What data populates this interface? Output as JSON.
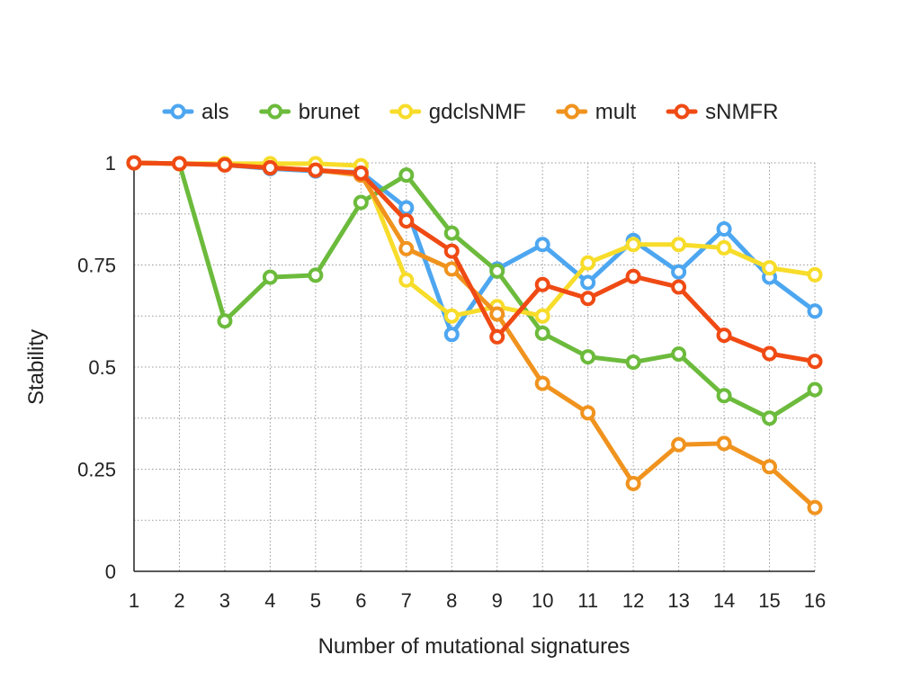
{
  "chart_data": {
    "type": "line",
    "title": "",
    "xlabel": "Number of mutational signatures",
    "ylabel": "Stability",
    "x": [
      1,
      2,
      3,
      4,
      5,
      6,
      7,
      8,
      9,
      10,
      11,
      12,
      13,
      14,
      15,
      16
    ],
    "xlim": [
      1,
      16
    ],
    "ylim": [
      0,
      1
    ],
    "yticks": [
      0,
      0.25,
      0.5,
      0.75,
      1
    ],
    "ytick_labels": [
      "0",
      "0.25",
      "0.5",
      "0.75",
      "1"
    ],
    "xtick_labels": [
      "1",
      "2",
      "3",
      "4",
      "5",
      "6",
      "7",
      "8",
      "9",
      "10",
      "11",
      "12",
      "13",
      "14",
      "15",
      "16"
    ],
    "grid": true,
    "legend_position": "top",
    "series": [
      {
        "name": "als",
        "color": "#4da6f0",
        "values": [
          1.0,
          0.998,
          0.995,
          0.986,
          0.98,
          0.977,
          0.89,
          0.58,
          0.74,
          0.8,
          0.707,
          0.81,
          0.733,
          0.838,
          0.72,
          0.637
        ]
      },
      {
        "name": "brunet",
        "color": "#6cbb3c",
        "values": [
          1.0,
          0.998,
          0.613,
          0.72,
          0.725,
          0.903,
          0.97,
          0.828,
          0.735,
          0.583,
          0.525,
          0.512,
          0.532,
          0.43,
          0.375,
          0.445
        ]
      },
      {
        "name": "gdclsNMF",
        "color": "#f7dc2a",
        "values": [
          1.0,
          0.998,
          0.998,
          0.998,
          0.998,
          0.993,
          0.713,
          0.625,
          0.648,
          0.625,
          0.755,
          0.8,
          0.8,
          0.792,
          0.743,
          0.726
        ]
      },
      {
        "name": "mult",
        "color": "#f0931e",
        "values": [
          1.0,
          0.998,
          0.995,
          0.988,
          0.982,
          0.97,
          0.79,
          0.74,
          0.63,
          0.46,
          0.388,
          0.215,
          0.31,
          0.313,
          0.256,
          0.156
        ]
      },
      {
        "name": "sNMFR",
        "color": "#f04a14",
        "values": [
          1.0,
          0.998,
          0.995,
          0.988,
          0.982,
          0.975,
          0.858,
          0.784,
          0.574,
          0.702,
          0.668,
          0.722,
          0.696,
          0.578,
          0.533,
          0.514
        ]
      }
    ]
  }
}
